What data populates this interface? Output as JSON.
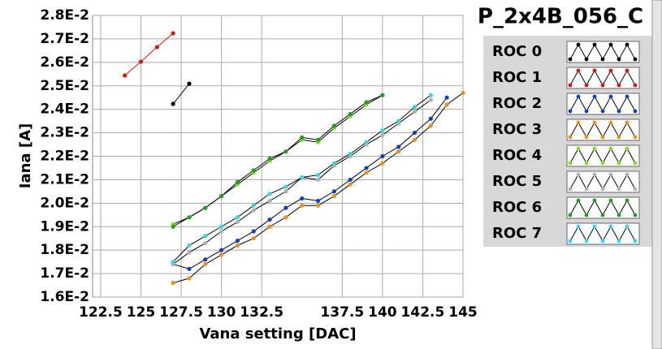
{
  "chart_data": {
    "type": "line",
    "title": "P_2x4B_056_C",
    "x_label": "Vana setting [DAC]",
    "y_label": "Iana [A]",
    "xlim": [
      122,
      145
    ],
    "ylim": [
      0.016,
      0.028
    ],
    "xticks": [
      122.5,
      125,
      127.5,
      130,
      132.5,
      137.5,
      140,
      142.5,
      145
    ],
    "yticks": [
      {
        "value": 0.016,
        "label": "1.6E-2"
      },
      {
        "value": 0.017,
        "label": "1.7E-2"
      },
      {
        "value": 0.018,
        "label": "1.8E-2"
      },
      {
        "value": 0.019,
        "label": "1.9E-2"
      },
      {
        "value": 0.02,
        "label": "2.0E-2"
      },
      {
        "value": 0.021,
        "label": "2.1E-2"
      },
      {
        "value": 0.022,
        "label": "2.2E-2"
      },
      {
        "value": 0.023,
        "label": "2.3E-2"
      },
      {
        "value": 0.024,
        "label": "2.4E-2"
      },
      {
        "value": 0.025,
        "label": "2.5E-2"
      },
      {
        "value": 0.026,
        "label": "2.6E-2"
      },
      {
        "value": 0.027,
        "label": "2.7E-2"
      },
      {
        "value": 0.028,
        "label": "2.8E-2"
      }
    ],
    "grid": true,
    "series": [
      {
        "name": "ROC 0",
        "color": "#000000",
        "x": [
          127,
          128
        ],
        "values": [
          0.02423,
          0.02509
        ]
      },
      {
        "name": "ROC 1",
        "color": "#e01010",
        "x": [
          124,
          125,
          126,
          127
        ],
        "values": [
          0.02544,
          0.02603,
          0.02665,
          0.02724
        ]
      },
      {
        "name": "ROC 2",
        "color": "#1040c0",
        "x": [
          127,
          128,
          129,
          130,
          131,
          132,
          133,
          134,
          135,
          136,
          137,
          138,
          139,
          140,
          141,
          142,
          143,
          144
        ],
        "values": [
          0.0174,
          0.0172,
          0.0176,
          0.018,
          0.0184,
          0.0188,
          0.0193,
          0.0198,
          0.0202,
          0.0201,
          0.0205,
          0.021,
          0.0215,
          0.022,
          0.0224,
          0.023,
          0.0236,
          0.0245
        ]
      },
      {
        "name": "ROC 3",
        "color": "#f09010",
        "x": [
          127,
          128,
          129,
          130,
          131,
          132,
          133,
          134,
          135,
          136,
          137,
          138,
          139,
          140,
          141,
          142,
          143,
          144,
          145
        ],
        "values": [
          0.0166,
          0.0168,
          0.0174,
          0.0178,
          0.0182,
          0.0185,
          0.019,
          0.0194,
          0.0199,
          0.0199,
          0.0203,
          0.0208,
          0.0213,
          0.0217,
          0.0222,
          0.0227,
          0.0233,
          0.0242,
          0.0247
        ]
      },
      {
        "name": "ROC 4",
        "color": "#80e020",
        "x": [
          127,
          128,
          129,
          130,
          131,
          132,
          133,
          134,
          135,
          136,
          137,
          138,
          139,
          140
        ],
        "values": [
          0.0191,
          0.0194,
          0.0198,
          0.0203,
          0.0208,
          0.0213,
          0.0218,
          0.0222,
          0.0227,
          0.0226,
          0.0232,
          0.0237,
          0.0242,
          0.0246
        ]
      },
      {
        "name": "ROC 5",
        "color": "#b0b0b0",
        "x": [
          127,
          128,
          129,
          130,
          131,
          132,
          133,
          134,
          135,
          136,
          137,
          138,
          139,
          140,
          141,
          142,
          143
        ],
        "values": [
          0.0174,
          0.0179,
          0.0183,
          0.0188,
          0.0192,
          0.0197,
          0.0201,
          0.0205,
          0.0211,
          0.021,
          0.0216,
          0.022,
          0.0225,
          0.0229,
          0.0234,
          0.0239,
          0.0244
        ]
      },
      {
        "name": "ROC 6",
        "color": "#20a020",
        "x": [
          127,
          128,
          129,
          130,
          131,
          132,
          133,
          134,
          135,
          136,
          137,
          138,
          139,
          140
        ],
        "values": [
          0.019,
          0.0194,
          0.0198,
          0.0203,
          0.0209,
          0.0214,
          0.0219,
          0.0222,
          0.0228,
          0.0227,
          0.0233,
          0.0238,
          0.0243,
          0.0246
        ]
      },
      {
        "name": "ROC 7",
        "color": "#30d8e8",
        "x": [
          127,
          128,
          129,
          130,
          131,
          132,
          133,
          134,
          135,
          136,
          137,
          138,
          139,
          140,
          141,
          142,
          143
        ],
        "values": [
          0.0175,
          0.0182,
          0.0186,
          0.019,
          0.0194,
          0.0199,
          0.0204,
          0.0207,
          0.0211,
          0.0212,
          0.0217,
          0.0221,
          0.0226,
          0.0231,
          0.0235,
          0.0241,
          0.0246
        ]
      }
    ]
  }
}
